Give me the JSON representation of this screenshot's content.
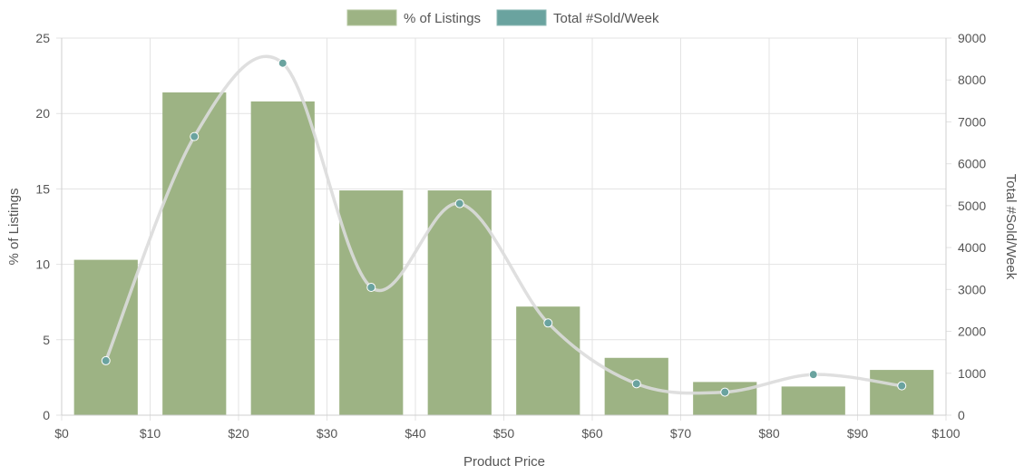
{
  "chart_data": {
    "type": "bar",
    "xlabel": "Product Price",
    "ylabel": "% of Listings",
    "y2label": "Total #Sold/Week",
    "xlim": [
      0,
      100
    ],
    "ylim": [
      0,
      25
    ],
    "y2lim": [
      0,
      9000
    ],
    "x_ticks": [
      "$0",
      "$10",
      "$20",
      "$30",
      "$40",
      "$50",
      "$60",
      "$70",
      "$80",
      "$90",
      "$100"
    ],
    "y_ticks": [
      "0",
      "5",
      "10",
      "15",
      "20",
      "25"
    ],
    "y2_ticks": [
      "0",
      "1000",
      "2000",
      "3000",
      "4000",
      "5000",
      "6000",
      "7000",
      "8000",
      "9000"
    ],
    "legend_position": "top-center",
    "grid": true,
    "x": [
      5,
      15,
      25,
      35,
      45,
      55,
      65,
      75,
      85,
      95
    ],
    "series": [
      {
        "name": "% of Listings",
        "type": "bar",
        "axis": "left",
        "color": "#9db384",
        "values": [
          10.3,
          21.4,
          20.8,
          14.9,
          14.9,
          7.2,
          3.8,
          2.2,
          1.9,
          3.0
        ]
      },
      {
        "name": "Total #Sold/Week",
        "type": "line",
        "axis": "right",
        "color": "#6aa39f",
        "line_color": "#dcdcdc",
        "values": [
          1300,
          6650,
          8400,
          3050,
          5050,
          2200,
          750,
          550,
          970,
          700
        ]
      }
    ]
  }
}
